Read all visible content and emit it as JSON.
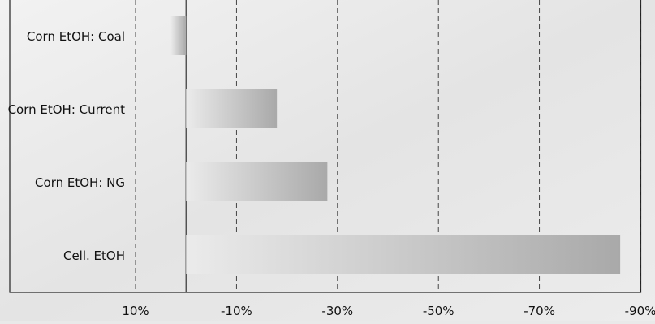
{
  "chart_data": {
    "type": "bar",
    "orientation": "horizontal",
    "axis_reversed": true,
    "categories": [
      "Corn EtOH: Coal",
      "Corn EtOH: Current",
      "Corn EtOH: NG",
      "Cell. EtOH"
    ],
    "values": [
      3,
      -18,
      -28,
      -86
    ],
    "xlim": [
      10,
      -90
    ],
    "xticks": [
      10,
      -10,
      -30,
      -50,
      -70,
      -90
    ],
    "xtick_labels": [
      "10%",
      "-10%",
      "-30%",
      "-50%",
      "-70%",
      "-90%"
    ],
    "grid": "vertical dashed",
    "title": "",
    "xlabel": "",
    "ylabel": ""
  }
}
